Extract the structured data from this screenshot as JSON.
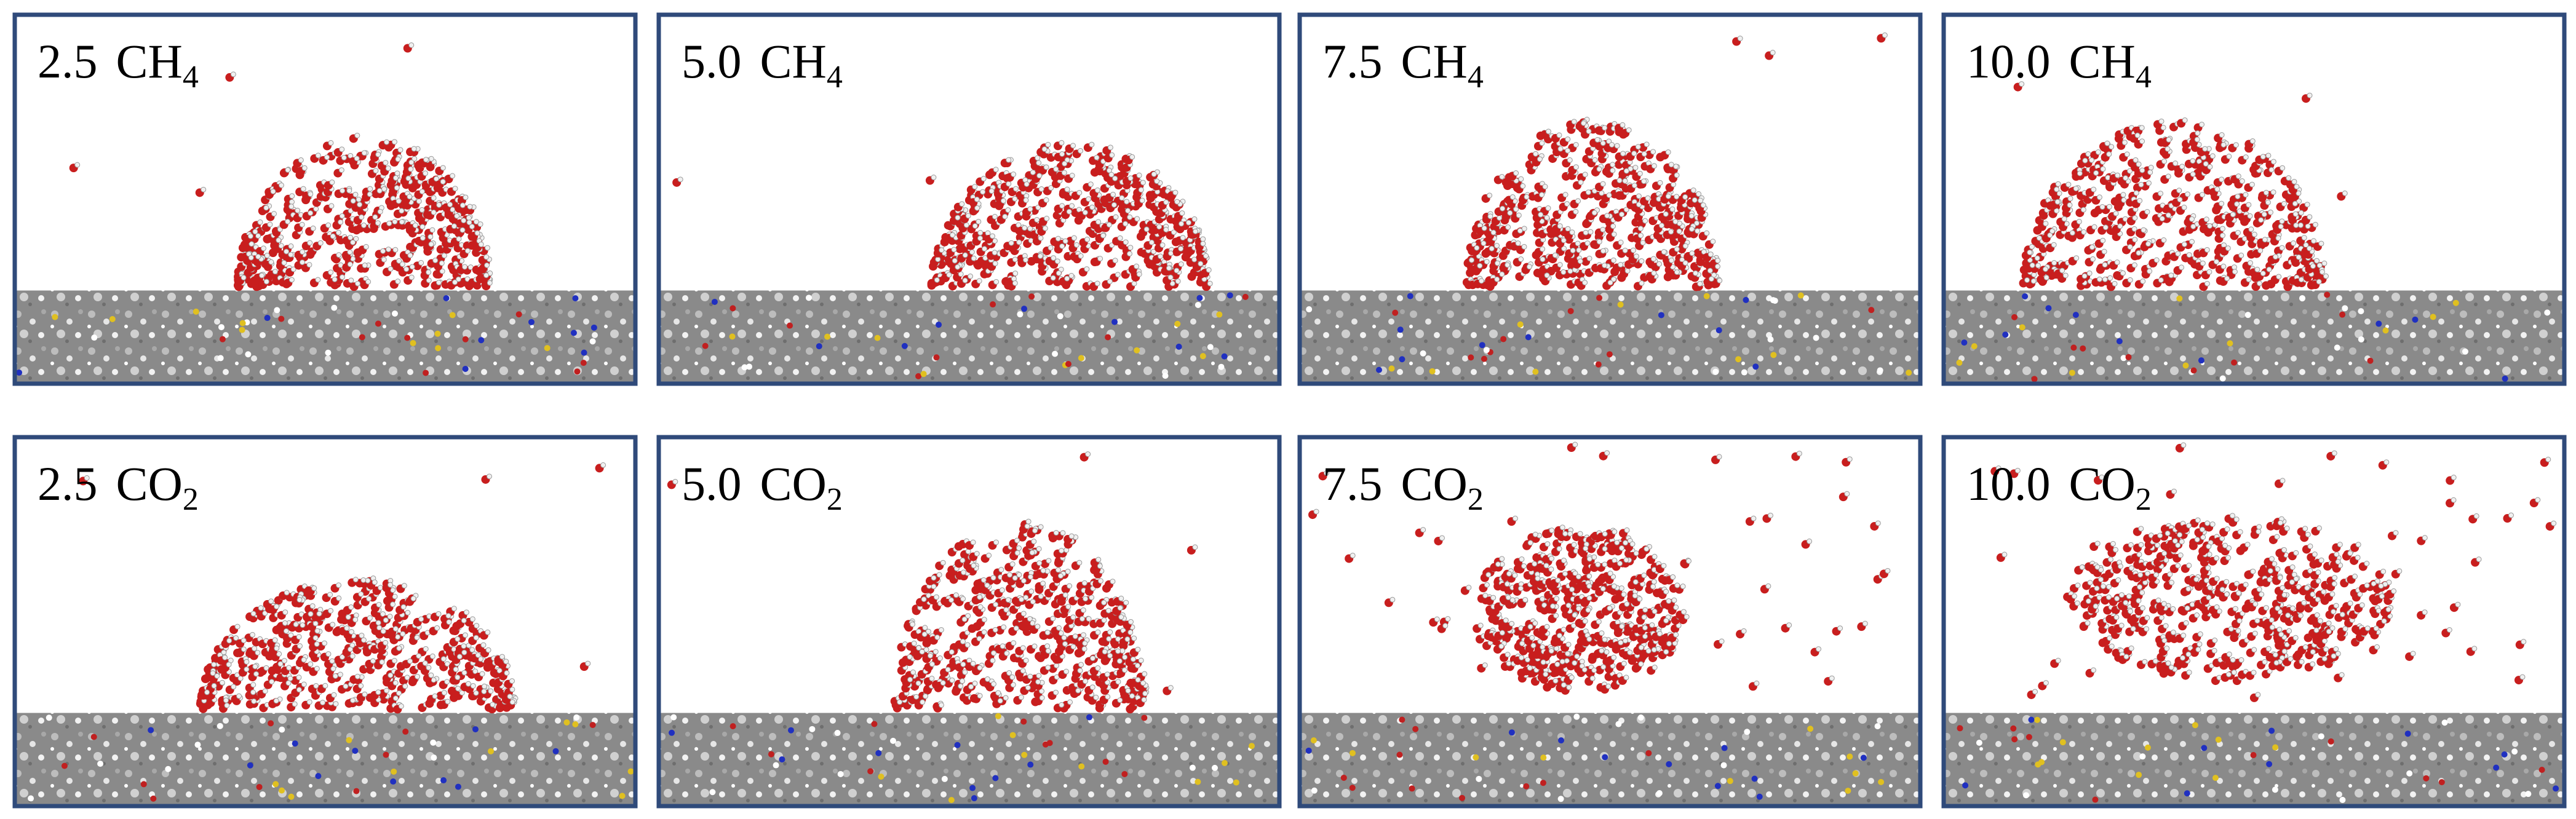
{
  "panels": [
    {
      "value": "2.5",
      "species": "CH",
      "subscript": "4"
    },
    {
      "value": "5.0",
      "species": "CH",
      "subscript": "4"
    },
    {
      "value": "7.5",
      "species": "CH",
      "subscript": "4"
    },
    {
      "value": "10.0",
      "species": "CH",
      "subscript": "4"
    },
    {
      "value": "2.5",
      "species": "CO",
      "subscript": "2"
    },
    {
      "value": "5.0",
      "species": "CO",
      "subscript": "2"
    },
    {
      "value": "7.5",
      "species": "CO",
      "subscript": "2"
    },
    {
      "value": "10.0",
      "species": "CO",
      "subscript": "2"
    }
  ]
}
